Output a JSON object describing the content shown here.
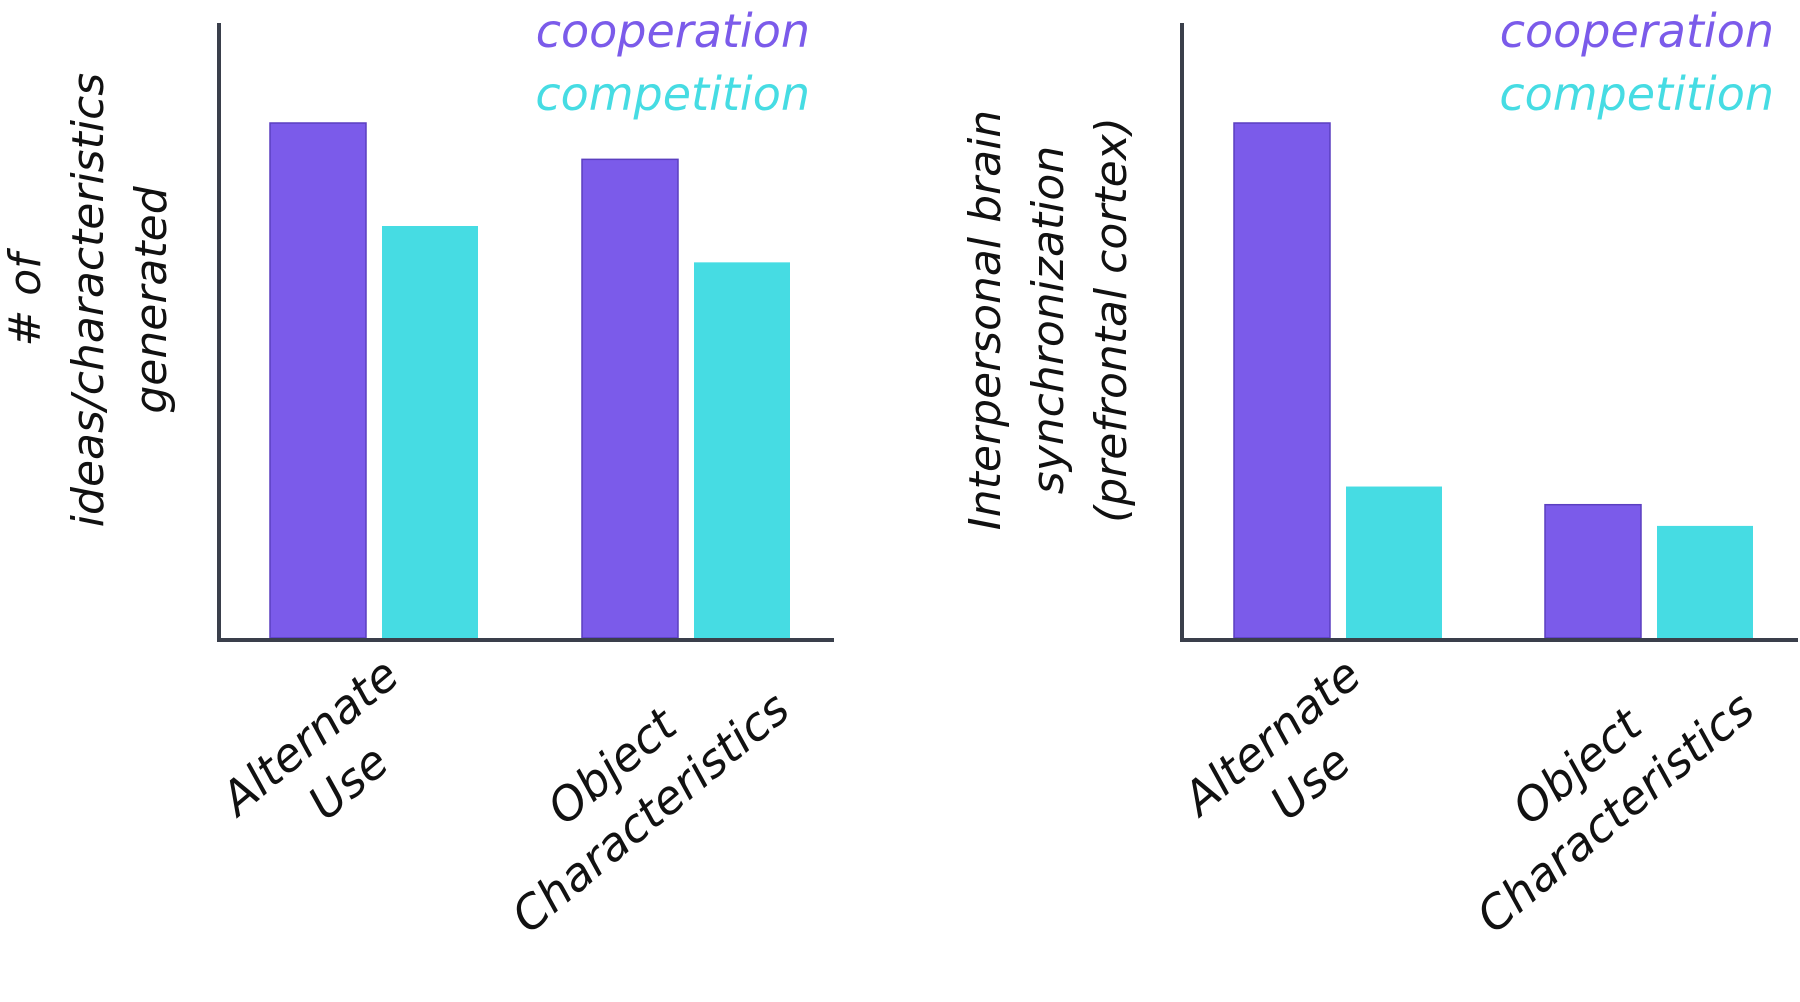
{
  "colors": {
    "cooperation": "#7b5bea",
    "competition": "#46dce3",
    "axis": "#3a3f4b",
    "text": "#111111"
  },
  "chart_data": [
    {
      "type": "bar",
      "title": "",
      "ylabel_lines": [
        "# of",
        "ideas/characteristics",
        "generated"
      ],
      "xlabel": "",
      "categories": [
        [
          "Alternate",
          "Use"
        ],
        [
          "Object",
          "Characteristics"
        ]
      ],
      "series": [
        {
          "name": "cooperation",
          "values": [
            85,
            79
          ]
        },
        {
          "name": "competition",
          "values": [
            68,
            62
          ]
        }
      ],
      "ylim": [
        0,
        100
      ],
      "grid": false,
      "legend": "top-right"
    },
    {
      "type": "bar",
      "title": "",
      "ylabel_lines": [
        "Interpersonal brain",
        "synchronization",
        "(prefrontal cortex)"
      ],
      "xlabel": "",
      "categories": [
        [
          "Alternate",
          "Use"
        ],
        [
          "Object",
          "Characteristics"
        ]
      ],
      "series": [
        {
          "name": "cooperation",
          "values": [
            85,
            22
          ]
        },
        {
          "name": "competition",
          "values": [
            25,
            18.5
          ]
        }
      ],
      "ylim": [
        0,
        100
      ],
      "grid": false,
      "legend": "top-right"
    }
  ]
}
